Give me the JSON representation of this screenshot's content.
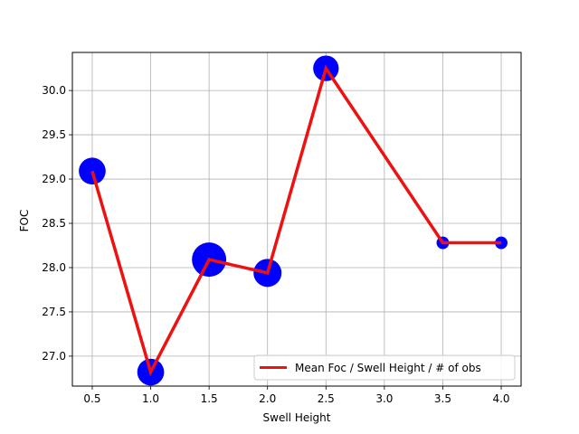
{
  "chart_data": {
    "type": "line",
    "title": "",
    "xlabel": "Swell Height",
    "ylabel": "FOC",
    "xlim": [
      0.33,
      4.17
    ],
    "ylim": [
      26.662,
      30.43
    ],
    "xticks": [
      0.5,
      1.0,
      1.5,
      2.0,
      2.5,
      3.0,
      3.5,
      4.0
    ],
    "xtick_labels": [
      "0.5",
      "1.0",
      "1.5",
      "2.0",
      "2.5",
      "3.0",
      "3.5",
      "4.0"
    ],
    "yticks": [
      27.0,
      27.5,
      28.0,
      28.5,
      29.0,
      29.5,
      30.0
    ],
    "ytick_labels": [
      "27.0",
      "27.5",
      "28.0",
      "28.5",
      "29.0",
      "29.5",
      "30.0"
    ],
    "grid": true,
    "legend_position": "lower-right",
    "series": [
      {
        "name": "Mean Foc / Swell Height / # of obs",
        "color": "#ee1111",
        "marker_color": "#0000ff",
        "x": [
          0.5,
          1.0,
          1.5,
          2.0,
          2.5,
          3.5,
          4.0
        ],
        "y": [
          29.09,
          26.82,
          28.09,
          27.94,
          30.25,
          28.28,
          28.28
        ],
        "marker_relative_size": [
          0.55,
          0.55,
          0.9,
          0.6,
          0.5,
          0.12,
          0.12
        ]
      }
    ]
  }
}
